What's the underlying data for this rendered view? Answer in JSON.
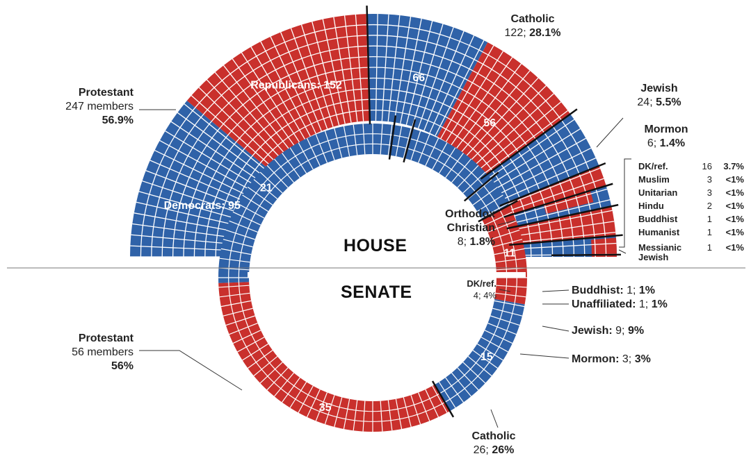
{
  "chart_data": [
    {
      "type": "waffle-semicircle",
      "title": "HOUSE",
      "groups": [
        {
          "name": "Protestant",
          "line1": "247 members",
          "pct": "56.9%",
          "parties": [
            {
              "name": "Democrats",
              "value": 95
            },
            {
              "name": "Republicans",
              "value": 152
            }
          ]
        },
        {
          "name": "Catholic",
          "value": 122,
          "pct": "28.1%",
          "parties": [
            {
              "name": "Democrats",
              "value": 66
            },
            {
              "name": "Republicans",
              "value": 56
            }
          ]
        },
        {
          "name": "Jewish",
          "value": 24,
          "pct": "5.5%"
        },
        {
          "name": "Mormon",
          "value": 6,
          "pct": "1.4%"
        },
        {
          "name": "Orthodox Christian",
          "value": 8,
          "pct": "1.8%"
        }
      ],
      "small_groups": [
        {
          "name": "DK/ref.",
          "value": "16",
          "pct": "3.7%"
        },
        {
          "name": "Muslim",
          "value": "3",
          "pct": "<1%"
        },
        {
          "name": "Unitarian",
          "value": "3",
          "pct": "<1%"
        },
        {
          "name": "Hindu",
          "value": "2",
          "pct": "<1%"
        },
        {
          "name": "Buddhist",
          "value": "1",
          "pct": "<1%"
        },
        {
          "name": "Humanist",
          "value": "1",
          "pct": "<1%"
        },
        {
          "name": "Messianic Jewish",
          "value": "1",
          "pct": "<1%"
        }
      ],
      "segment_labels": {
        "dem_protestant": "Democrats: 95",
        "rep_protestant": "Republicans: 152",
        "dem_catholic": "66",
        "rep_catholic": "56"
      }
    },
    {
      "type": "waffle-semicircle",
      "title": "SENATE",
      "groups": [
        {
          "name": "Protestant",
          "line1": "56 members",
          "pct": "56%",
          "parties": [
            {
              "name": "Democrats",
              "value": 21
            },
            {
              "name": "Republicans",
              "value": 35
            }
          ]
        },
        {
          "name": "Catholic",
          "value": 26,
          "pct": "26%",
          "parties": [
            {
              "name": "Democrats",
              "value": 15
            },
            {
              "name": "Republicans",
              "value": 11
            }
          ]
        },
        {
          "name": "Mormon",
          "value": 3,
          "pct": "3%"
        },
        {
          "name": "Jewish",
          "value": 9,
          "pct": "9%"
        },
        {
          "name": "Unaffiliated",
          "value": 1,
          "pct": "1%"
        },
        {
          "name": "Buddhist",
          "value": 1,
          "pct": "1%"
        },
        {
          "name": "DK/ref.",
          "value": 4,
          "pct": "4%"
        }
      ],
      "segment_labels": {
        "dem_protestant": "21",
        "rep_protestant": "35",
        "dem_catholic": "15",
        "rep_catholic": "11"
      }
    }
  ],
  "colors": {
    "democrat": "#2f62a8",
    "republican": "#c9302c",
    "divider": "#111111"
  },
  "labels": {
    "house_title": "HOUSE",
    "senate_title": "SENATE",
    "h_prot_name": "Protestant",
    "h_prot_line": "247 members",
    "h_prot_pct": "56.9%",
    "h_cath_name": "Catholic",
    "h_cath_num": "122;",
    "h_cath_pct": "28.1%",
    "h_jew_name": "Jewish",
    "h_jew_num": "24;",
    "h_jew_pct": "5.5%",
    "h_mor_name": "Mormon",
    "h_mor_num": "6;",
    "h_mor_pct": "1.4%",
    "h_orth_name1": "Orthodox",
    "h_orth_name2": "Christian",
    "h_orth_num": "8;",
    "h_orth_pct": "1.8%",
    "s_prot_name": "Protestant",
    "s_prot_line": "56 members",
    "s_prot_pct": "56%",
    "s_cath_name": "Catholic",
    "s_cath_num": "26;",
    "s_cath_pct": "26%",
    "s_dk_name": "DK/ref.",
    "s_dk_line": "4; 4%",
    "s_bud_name": "Buddhist:",
    "s_bud_num": "1;",
    "s_bud_pct": "1%",
    "s_una_name": "Unaffiliated:",
    "s_una_num": "1;",
    "s_una_pct": "1%",
    "s_jew_name": "Jewish:",
    "s_jew_num": "9;",
    "s_jew_pct": "9%",
    "s_mor_name": "Mormon:",
    "s_mor_num": "3;",
    "s_mor_pct": "3%",
    "tbl_0_name": "DK/ref.",
    "tbl_0_val": "16",
    "tbl_0_pct": "3.7%",
    "tbl_1_name": "Muslim",
    "tbl_1_val": "3",
    "tbl_1_pct": "<1%",
    "tbl_2_name": "Unitarian",
    "tbl_2_val": "3",
    "tbl_2_pct": "<1%",
    "tbl_3_name": "Hindu",
    "tbl_3_val": "2",
    "tbl_3_pct": "<1%",
    "tbl_4_name": "Buddhist",
    "tbl_4_val": "1",
    "tbl_4_pct": "<1%",
    "tbl_5_name": "Humanist",
    "tbl_5_val": "1",
    "tbl_5_pct": "<1%",
    "tbl_6_name1": "Messianic",
    "tbl_6_name2": "Jewish",
    "tbl_6_val": "1",
    "tbl_6_pct": "<1%"
  }
}
